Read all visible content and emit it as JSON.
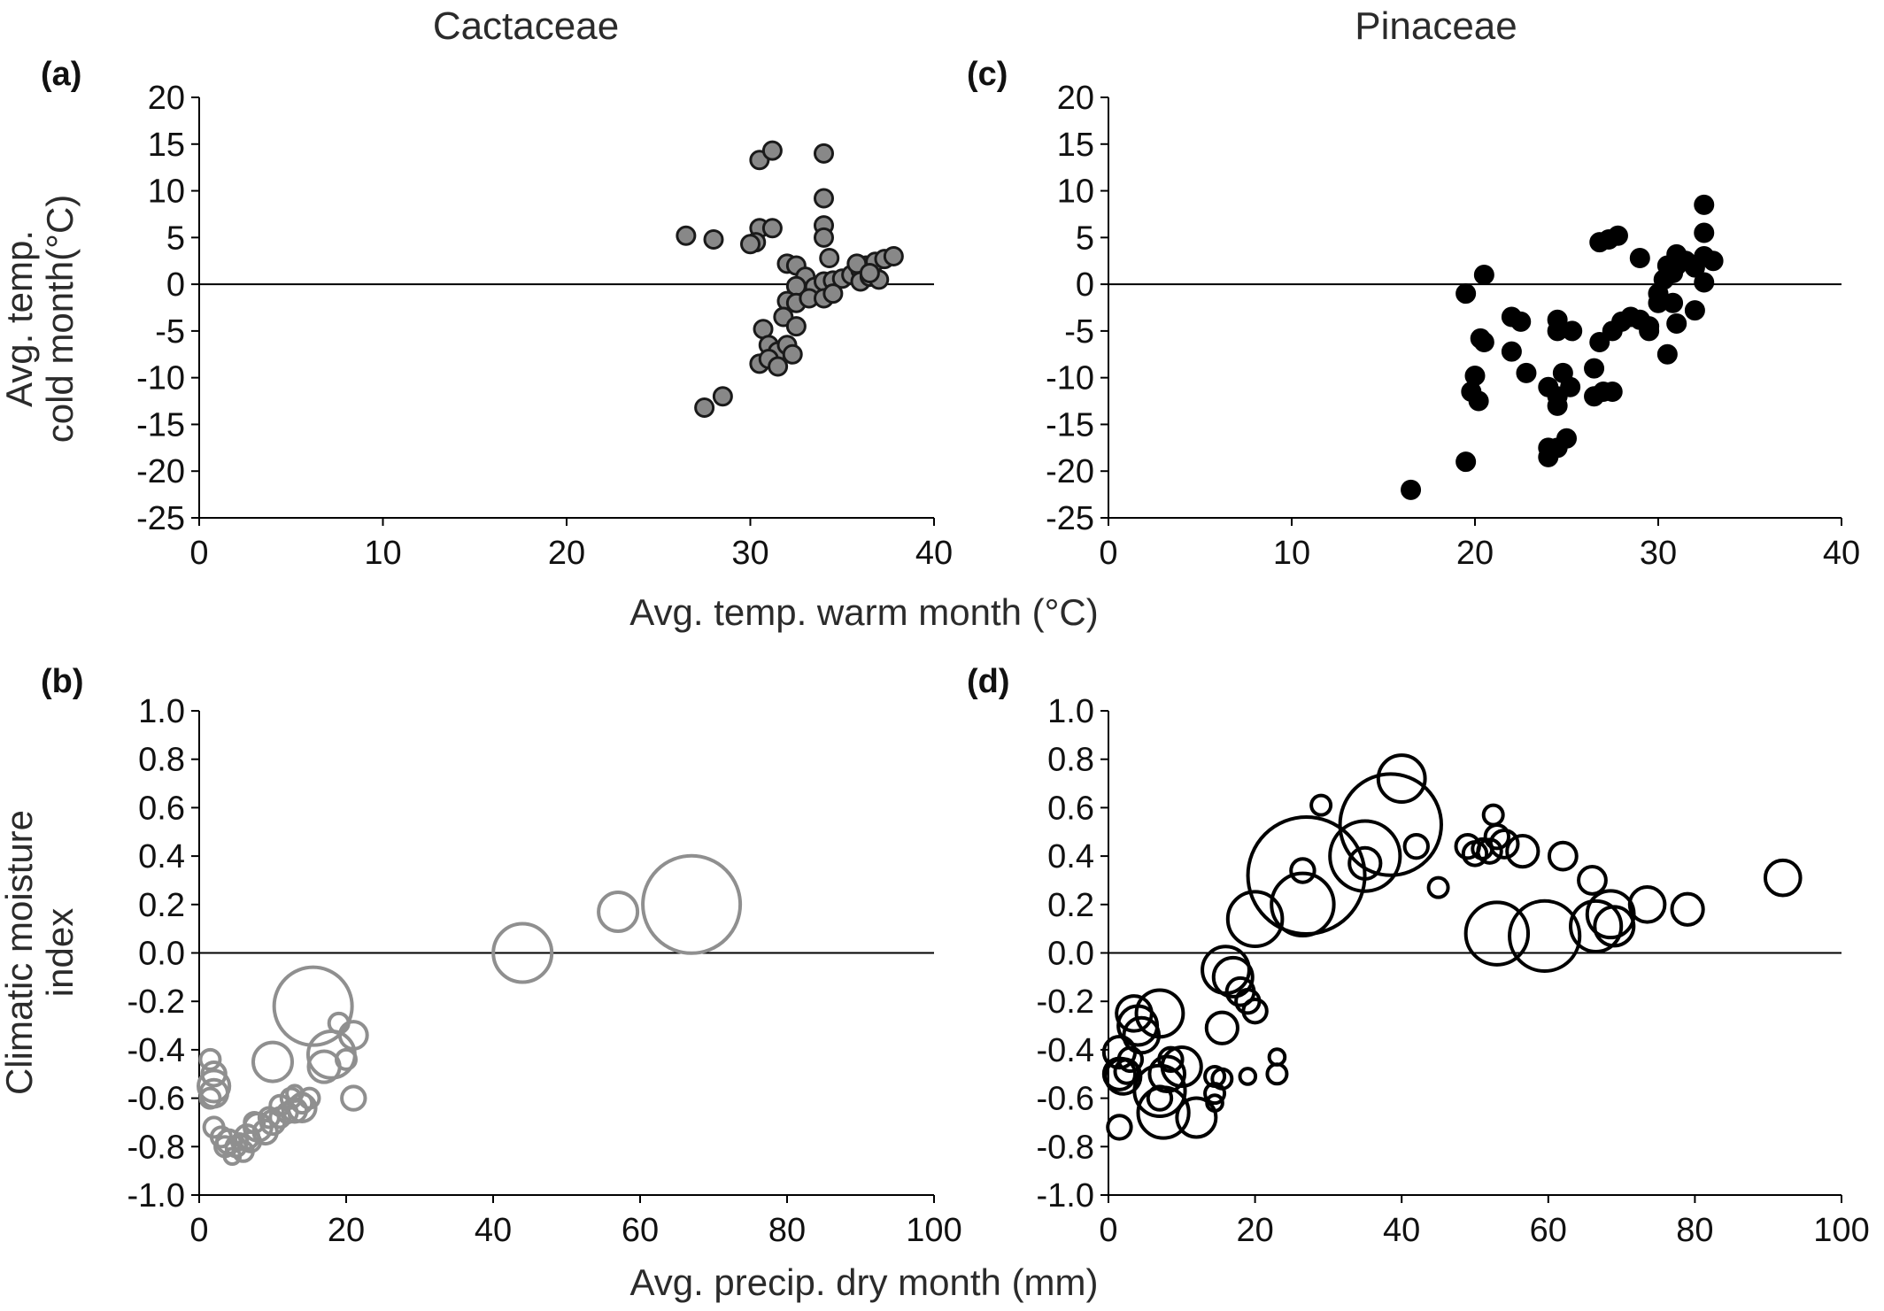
{
  "titles": {
    "left": "Cactaceae",
    "right": "Pinaceae"
  },
  "shared_labels": {
    "temp_x": "Avg. temp. warm month (°C)",
    "temp_y_line1": "Avg. temp.",
    "temp_y_line2": "cold month(°C)",
    "precip_x": "Avg. precip. dry month (mm)",
    "precip_y_line1": "Climatic moisture",
    "precip_y_line2": "index"
  },
  "colors": {
    "cactaceae_fill": "#888888",
    "cactaceae_ring": "#8f8f8f",
    "pinaceae": "#000000"
  },
  "chart_data": [
    {
      "panel": "(a)",
      "type": "scatter",
      "family": "Cactaceae",
      "xlim": [
        0,
        40
      ],
      "ylim": [
        -25,
        20
      ],
      "xticks": [
        "0",
        "10",
        "20",
        "30",
        "40"
      ],
      "yticks": [
        "20",
        "15",
        "10",
        "5",
        "0",
        "-5",
        "-10",
        "-15",
        "-20",
        "-25"
      ],
      "marker": "filled-grey",
      "points": [
        [
          26.5,
          5.2
        ],
        [
          28.0,
          4.8
        ],
        [
          30.5,
          6.0
        ],
        [
          30.3,
          4.5
        ],
        [
          30.0,
          4.3
        ],
        [
          31.2,
          6.0
        ],
        [
          30.5,
          13.3
        ],
        [
          31.2,
          14.3
        ],
        [
          34.0,
          14.0
        ],
        [
          34.0,
          9.2
        ],
        [
          34.0,
          6.3
        ],
        [
          34.0,
          5.0
        ],
        [
          34.3,
          2.8
        ],
        [
          32.0,
          2.2
        ],
        [
          32.5,
          2.0
        ],
        [
          33.0,
          0.8
        ],
        [
          32.5,
          -0.2
        ],
        [
          33.5,
          -0.3
        ],
        [
          34.0,
          0.3
        ],
        [
          34.5,
          0.4
        ],
        [
          35.0,
          0.6
        ],
        [
          35.5,
          1.0
        ],
        [
          36.0,
          1.5
        ],
        [
          36.3,
          2.0
        ],
        [
          36.8,
          2.4
        ],
        [
          37.3,
          2.7
        ],
        [
          37.8,
          3.0
        ],
        [
          36.0,
          0.3
        ],
        [
          36.5,
          0.8
        ],
        [
          37.0,
          0.5
        ],
        [
          35.8,
          2.2
        ],
        [
          36.5,
          1.2
        ],
        [
          32.0,
          -1.8
        ],
        [
          32.5,
          -2.0
        ],
        [
          33.2,
          -1.5
        ],
        [
          34.0,
          -1.5
        ],
        [
          34.5,
          -1.0
        ],
        [
          31.8,
          -3.5
        ],
        [
          32.5,
          -4.5
        ],
        [
          30.7,
          -4.8
        ],
        [
          31.0,
          -6.5
        ],
        [
          31.5,
          -7.2
        ],
        [
          32.0,
          -6.5
        ],
        [
          32.3,
          -7.5
        ],
        [
          30.5,
          -8.5
        ],
        [
          31.0,
          -8.0
        ],
        [
          31.5,
          -8.8
        ],
        [
          27.5,
          -13.2
        ],
        [
          28.5,
          -12.0
        ]
      ]
    },
    {
      "panel": "(b)",
      "type": "scatter",
      "family": "Cactaceae",
      "xlim": [
        0,
        100
      ],
      "ylim": [
        -1.0,
        1.0
      ],
      "xticks": [
        "0",
        "20",
        "40",
        "60",
        "80",
        "100"
      ],
      "yticks": [
        "1.0",
        "0.8",
        "0.6",
        "0.4",
        "0.2",
        "0.0",
        "-0.2",
        "-0.4",
        "-0.6",
        "-0.8",
        "-1.0"
      ],
      "marker": "open-grey-bubble",
      "points": [
        [
          67.0,
          0.2,
          2.5
        ],
        [
          57.0,
          0.17,
          1.0
        ],
        [
          44.0,
          0.0,
          1.5
        ],
        [
          15.5,
          -0.22,
          2.0
        ],
        [
          18.0,
          -0.42,
          1.2
        ],
        [
          19.0,
          -0.29,
          0.5
        ],
        [
          21.0,
          -0.34,
          0.7
        ],
        [
          17.0,
          -0.47,
          0.8
        ],
        [
          20.0,
          -0.44,
          0.5
        ],
        [
          21.0,
          -0.6,
          0.6
        ],
        [
          10.0,
          -0.45,
          1.0
        ],
        [
          1.5,
          -0.44,
          0.5
        ],
        [
          2.0,
          -0.5,
          0.6
        ],
        [
          2.0,
          -0.55,
          0.8
        ],
        [
          2.0,
          -0.58,
          0.7
        ],
        [
          1.5,
          -0.6,
          0.5
        ],
        [
          2.0,
          -0.72,
          0.5
        ],
        [
          3.0,
          -0.76,
          0.5
        ],
        [
          4.0,
          -0.78,
          0.6
        ],
        [
          5.0,
          -0.8,
          0.5
        ],
        [
          6.0,
          -0.82,
          0.5
        ],
        [
          4.5,
          -0.84,
          0.4
        ],
        [
          7.0,
          -0.78,
          0.5
        ],
        [
          8.0,
          -0.72,
          0.7
        ],
        [
          9.0,
          -0.74,
          0.6
        ],
        [
          10.0,
          -0.7,
          0.6
        ],
        [
          11.0,
          -0.68,
          0.5
        ],
        [
          12.0,
          -0.66,
          0.5
        ],
        [
          13.0,
          -0.65,
          0.6
        ],
        [
          14.0,
          -0.62,
          0.5
        ],
        [
          15.0,
          -0.6,
          0.5
        ],
        [
          13.0,
          -0.58,
          0.4
        ],
        [
          14.0,
          -0.64,
          0.7
        ],
        [
          11.0,
          -0.63,
          0.5
        ],
        [
          12.5,
          -0.6,
          0.5
        ],
        [
          6.5,
          -0.76,
          0.6
        ],
        [
          3.5,
          -0.8,
          0.5
        ],
        [
          5.5,
          -0.78,
          0.4
        ],
        [
          9.5,
          -0.68,
          0.5
        ],
        [
          7.5,
          -0.7,
          0.5
        ]
      ]
    },
    {
      "panel": "(c)",
      "type": "scatter",
      "family": "Pinaceae",
      "xlim": [
        0,
        40
      ],
      "ylim": [
        -25,
        20
      ],
      "xticks": [
        "0",
        "10",
        "20",
        "30",
        "40"
      ],
      "yticks": [
        "20",
        "15",
        "10",
        "5",
        "0",
        "-5",
        "-10",
        "-15",
        "-20",
        "-25"
      ],
      "marker": "filled-black",
      "points": [
        [
          16.5,
          -22.0
        ],
        [
          19.5,
          -19.0
        ],
        [
          19.5,
          -1.0
        ],
        [
          20.5,
          1.0
        ],
        [
          20.3,
          -5.8
        ],
        [
          20.5,
          -6.2
        ],
        [
          20.0,
          -9.8
        ],
        [
          19.8,
          -11.5
        ],
        [
          20.2,
          -12.5
        ],
        [
          22.0,
          -3.5
        ],
        [
          22.5,
          -4.0
        ],
        [
          22.0,
          -7.2
        ],
        [
          22.8,
          -9.5
        ],
        [
          24.5,
          -3.8
        ],
        [
          24.5,
          -5.0
        ],
        [
          25.3,
          -5.0
        ],
        [
          24.0,
          -11.0
        ],
        [
          24.5,
          -12.0
        ],
        [
          24.5,
          -13.0
        ],
        [
          24.8,
          -9.5
        ],
        [
          25.2,
          -11.0
        ],
        [
          25.0,
          -16.5
        ],
        [
          24.5,
          -17.5
        ],
        [
          24.0,
          -17.5
        ],
        [
          24.0,
          -18.5
        ],
        [
          26.5,
          -9.0
        ],
        [
          26.5,
          -12.0
        ],
        [
          27.0,
          -11.5
        ],
        [
          27.5,
          -11.5
        ],
        [
          26.8,
          4.5
        ],
        [
          27.3,
          4.8
        ],
        [
          27.8,
          5.2
        ],
        [
          29.0,
          2.8
        ],
        [
          26.8,
          -6.2
        ],
        [
          27.5,
          -5.0
        ],
        [
          28.0,
          -4.0
        ],
        [
          28.5,
          -3.5
        ],
        [
          29.0,
          -3.8
        ],
        [
          29.5,
          -4.5
        ],
        [
          29.5,
          -5.0
        ],
        [
          30.0,
          -2.0
        ],
        [
          30.0,
          -1.0
        ],
        [
          30.3,
          0.5
        ],
        [
          30.8,
          1.2
        ],
        [
          31.0,
          2.0
        ],
        [
          31.5,
          2.5
        ],
        [
          31.0,
          3.2
        ],
        [
          30.5,
          2.0
        ],
        [
          30.8,
          -2.0
        ],
        [
          31.0,
          -4.2
        ],
        [
          32.0,
          -2.8
        ],
        [
          30.5,
          -7.5
        ],
        [
          32.5,
          8.5
        ],
        [
          32.5,
          5.5
        ],
        [
          32.5,
          3.0
        ],
        [
          33.0,
          2.5
        ],
        [
          32.0,
          1.8
        ],
        [
          32.5,
          0.2
        ]
      ]
    },
    {
      "panel": "(d)",
      "type": "scatter",
      "family": "Pinaceae",
      "xlim": [
        0,
        100
      ],
      "ylim": [
        -1.0,
        1.0
      ],
      "xticks": [
        "0",
        "20",
        "40",
        "60",
        "80",
        "100"
      ],
      "yticks": [
        "1.0",
        "0.8",
        "0.6",
        "0.4",
        "0.2",
        "0.0",
        "-0.2",
        "-0.4",
        "-0.6",
        "-0.8",
        "-1.0"
      ],
      "marker": "open-black-bubble",
      "points": [
        [
          40.0,
          0.72,
          1.2
        ],
        [
          38.5,
          0.53,
          2.6
        ],
        [
          35.0,
          0.4,
          1.8
        ],
        [
          35.0,
          0.37,
          0.8
        ],
        [
          27.0,
          0.32,
          3.0
        ],
        [
          26.5,
          0.2,
          1.6
        ],
        [
          26.5,
          0.34,
          0.6
        ],
        [
          29.0,
          0.61,
          0.5
        ],
        [
          42.0,
          0.44,
          0.6
        ],
        [
          45.0,
          0.27,
          0.5
        ],
        [
          49.0,
          0.44,
          0.6
        ],
        [
          50.0,
          0.41,
          0.6
        ],
        [
          51.0,
          0.43,
          0.5
        ],
        [
          52.0,
          0.42,
          0.6
        ],
        [
          53.0,
          0.48,
          0.6
        ],
        [
          52.5,
          0.57,
          0.5
        ],
        [
          54.0,
          0.45,
          0.7
        ],
        [
          56.5,
          0.42,
          0.8
        ],
        [
          62.0,
          0.4,
          0.7
        ],
        [
          66.0,
          0.3,
          0.7
        ],
        [
          53.0,
          0.08,
          1.6
        ],
        [
          59.5,
          0.07,
          1.8
        ],
        [
          66.5,
          0.11,
          1.3
        ],
        [
          68.5,
          0.16,
          1.2
        ],
        [
          69.0,
          0.11,
          1.0
        ],
        [
          73.5,
          0.2,
          0.9
        ],
        [
          79.0,
          0.18,
          0.8
        ],
        [
          92.0,
          0.31,
          0.9
        ],
        [
          20.0,
          0.14,
          1.4
        ],
        [
          16.0,
          -0.07,
          1.2
        ],
        [
          17.0,
          -0.1,
          1.0
        ],
        [
          18.0,
          -0.16,
          0.7
        ],
        [
          19.0,
          -0.2,
          0.6
        ],
        [
          20.0,
          -0.24,
          0.6
        ],
        [
          15.5,
          -0.31,
          0.8
        ],
        [
          14.5,
          -0.51,
          0.5
        ],
        [
          15.5,
          -0.52,
          0.5
        ],
        [
          19.0,
          -0.51,
          0.4
        ],
        [
          23.0,
          -0.43,
          0.4
        ],
        [
          23.0,
          -0.5,
          0.5
        ],
        [
          14.5,
          -0.58,
          0.5
        ],
        [
          14.5,
          -0.62,
          0.4
        ],
        [
          12.0,
          -0.68,
          1.0
        ],
        [
          7.5,
          -0.66,
          1.3
        ],
        [
          7.0,
          -0.57,
          1.3
        ],
        [
          8.0,
          -0.5,
          0.9
        ],
        [
          10.0,
          -0.47,
          1.0
        ],
        [
          7.0,
          -0.6,
          0.6
        ],
        [
          8.5,
          -0.44,
          0.6
        ],
        [
          7.0,
          -0.25,
          1.2
        ],
        [
          3.5,
          -0.25,
          0.9
        ],
        [
          4.0,
          -0.3,
          1.0
        ],
        [
          4.5,
          -0.34,
          0.9
        ],
        [
          1.5,
          -0.41,
          0.8
        ],
        [
          1.5,
          -0.5,
          0.8
        ],
        [
          2.0,
          -0.51,
          0.9
        ],
        [
          2.5,
          -0.49,
          0.6
        ],
        [
          3.0,
          -0.44,
          0.6
        ],
        [
          1.5,
          -0.72,
          0.6
        ]
      ]
    }
  ]
}
